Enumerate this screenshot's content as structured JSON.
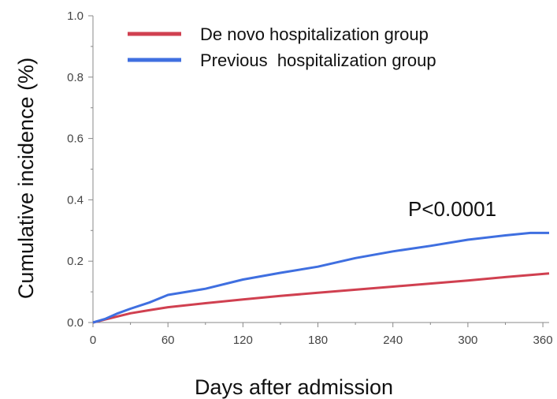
{
  "chart_data": {
    "type": "line",
    "title": "",
    "xlabel": "Days after admission",
    "ylabel": "Cumulative incidence (%)",
    "xlim": [
      0,
      365
    ],
    "ylim": [
      0.0,
      1.0
    ],
    "x_ticks": [
      0,
      60,
      120,
      180,
      240,
      300,
      360
    ],
    "y_ticks": [
      0.0,
      0.2,
      0.4,
      0.6,
      0.8,
      1.0
    ],
    "x_tick_labels": [
      "0",
      "60",
      "120",
      "180",
      "240",
      "300",
      "360"
    ],
    "y_tick_labels": [
      "0.0",
      "0.2",
      "0.4",
      "0.6",
      "0.8",
      "1.0"
    ],
    "grid": false,
    "legend_position": "top",
    "annotation": "P<0.0001",
    "series": [
      {
        "name": "De novo hospitalization group",
        "color": "#d04050",
        "x": [
          0,
          10,
          20,
          30,
          45,
          60,
          90,
          120,
          150,
          180,
          210,
          240,
          270,
          300,
          330,
          365
        ],
        "y": [
          0.0,
          0.01,
          0.02,
          0.03,
          0.04,
          0.05,
          0.063,
          0.075,
          0.087,
          0.097,
          0.107,
          0.117,
          0.127,
          0.137,
          0.148,
          0.16
        ]
      },
      {
        "name": "Previous  hospitalization group",
        "color": "#3f6fe0",
        "x": [
          0,
          10,
          20,
          30,
          45,
          60,
          75,
          90,
          120,
          150,
          180,
          210,
          240,
          270,
          300,
          330,
          350,
          365
        ],
        "y": [
          0.0,
          0.012,
          0.03,
          0.045,
          0.065,
          0.09,
          0.1,
          0.11,
          0.14,
          0.162,
          0.182,
          0.21,
          0.232,
          0.25,
          0.27,
          0.284,
          0.292,
          0.292
        ]
      }
    ]
  }
}
